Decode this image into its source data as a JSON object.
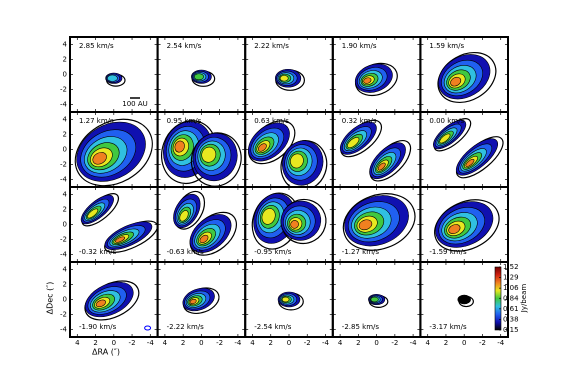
{
  "chart_data": {
    "type": "channel-map",
    "panels": [
      {
        "label": "2.85 km/s"
      },
      {
        "label": "2.54 km/s"
      },
      {
        "label": "2.22 km/s"
      },
      {
        "label": "1.90 km/s"
      },
      {
        "label": "1.59 km/s"
      },
      {
        "label": "1.27 km/s"
      },
      {
        "label": "0.95 km/s"
      },
      {
        "label": "0.63 km/s"
      },
      {
        "label": "0.32 km/s"
      },
      {
        "label": "0.00 km/s"
      },
      {
        "label": "-0.32 km/s"
      },
      {
        "label": "-0.63 km/s"
      },
      {
        "label": "-0.95 km/s"
      },
      {
        "label": "-1.27 km/s"
      },
      {
        "label": "-1.59 km/s"
      },
      {
        "label": "-1.90 km/s"
      },
      {
        "label": "-2.22 km/s"
      },
      {
        "label": "-2.54 km/s"
      },
      {
        "label": "-2.85 km/s"
      },
      {
        "label": "-3.17 km/s"
      }
    ],
    "xlim": [
      4.8,
      -4.8
    ],
    "ylim": [
      -5,
      5
    ],
    "xticks": [
      4,
      2,
      0,
      -2,
      -4
    ],
    "yticks": [
      4,
      2,
      0,
      -2,
      -4
    ],
    "xlabel": "ΔRA (″)",
    "ylabel": "ΔDec (″)",
    "scale_bar_label": "100 AU",
    "colorbar": {
      "label": "Jy/beam",
      "lim": [
        0.15,
        1.52
      ],
      "ticks": [
        1.52,
        1.29,
        1.06,
        0.84,
        0.61,
        0.38,
        0.15
      ],
      "colors": [
        "#000000",
        "#1010b0",
        "#2060f0",
        "#30c0e0",
        "#40c840",
        "#e8e820",
        "#f08020",
        "#d02010",
        "#700000"
      ]
    }
  }
}
